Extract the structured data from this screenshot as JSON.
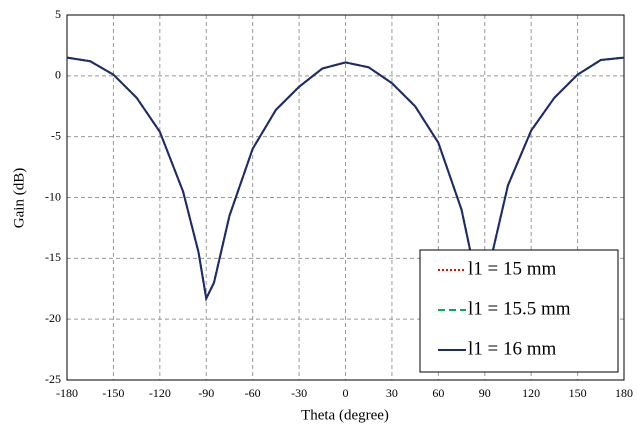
{
  "chart_data": {
    "type": "line",
    "x_label": "Theta (degree)",
    "y_label": "Gain (dB)",
    "x": [
      -180,
      -165,
      -150,
      -135,
      -120,
      -105,
      -95,
      -90,
      -85,
      -75,
      -60,
      -45,
      -30,
      -15,
      0,
      15,
      30,
      45,
      60,
      75,
      85,
      90,
      95,
      105,
      120,
      135,
      150,
      165,
      180
    ],
    "series": [
      {
        "name": "l1 = 15 mm",
        "color": "#ff0000",
        "style": "dotted",
        "values": [
          1.5,
          1.2,
          0.1,
          -1.8,
          -4.6,
          -9.5,
          -14.5,
          -18.3,
          -17.0,
          -11.5,
          -6.0,
          -2.8,
          -0.9,
          0.6,
          1.1,
          0.7,
          -0.6,
          -2.5,
          -5.5,
          -11.0,
          -17.0,
          -18.3,
          -14.5,
          -9.0,
          -4.5,
          -1.8,
          0.1,
          1.3,
          1.5
        ]
      },
      {
        "name": "l1 = 15.5 mm",
        "color": "#00b050",
        "style": "dashed",
        "values": [
          1.5,
          1.2,
          0.1,
          -1.8,
          -4.6,
          -9.5,
          -14.5,
          -18.3,
          -17.0,
          -11.5,
          -6.0,
          -2.8,
          -0.9,
          0.6,
          1.1,
          0.7,
          -0.6,
          -2.5,
          -5.5,
          -11.0,
          -17.0,
          -18.3,
          -14.5,
          -9.0,
          -4.5,
          -1.8,
          0.1,
          1.3,
          1.5
        ]
      },
      {
        "name": "l1 = 16 mm",
        "color": "#1f2a6b",
        "style": "solid",
        "values": [
          1.5,
          1.2,
          0.1,
          -1.8,
          -4.6,
          -9.5,
          -14.5,
          -18.3,
          -17.0,
          -11.5,
          -6.0,
          -2.8,
          -0.9,
          0.6,
          1.1,
          0.7,
          -0.6,
          -2.5,
          -5.5,
          -11.0,
          -17.0,
          -18.3,
          -14.5,
          -9.0,
          -4.5,
          -1.8,
          0.1,
          1.3,
          1.5
        ]
      }
    ],
    "xlim": [
      -180,
      180
    ],
    "xticks": [
      -180,
      -150,
      -120,
      -90,
      -60,
      -30,
      0,
      30,
      60,
      90,
      120,
      150,
      180
    ],
    "ylim": [
      -25,
      5
    ],
    "yticks": [
      -25,
      -20,
      -15,
      -10,
      -5,
      0,
      5
    ],
    "grid": true,
    "legend": "lower right"
  }
}
